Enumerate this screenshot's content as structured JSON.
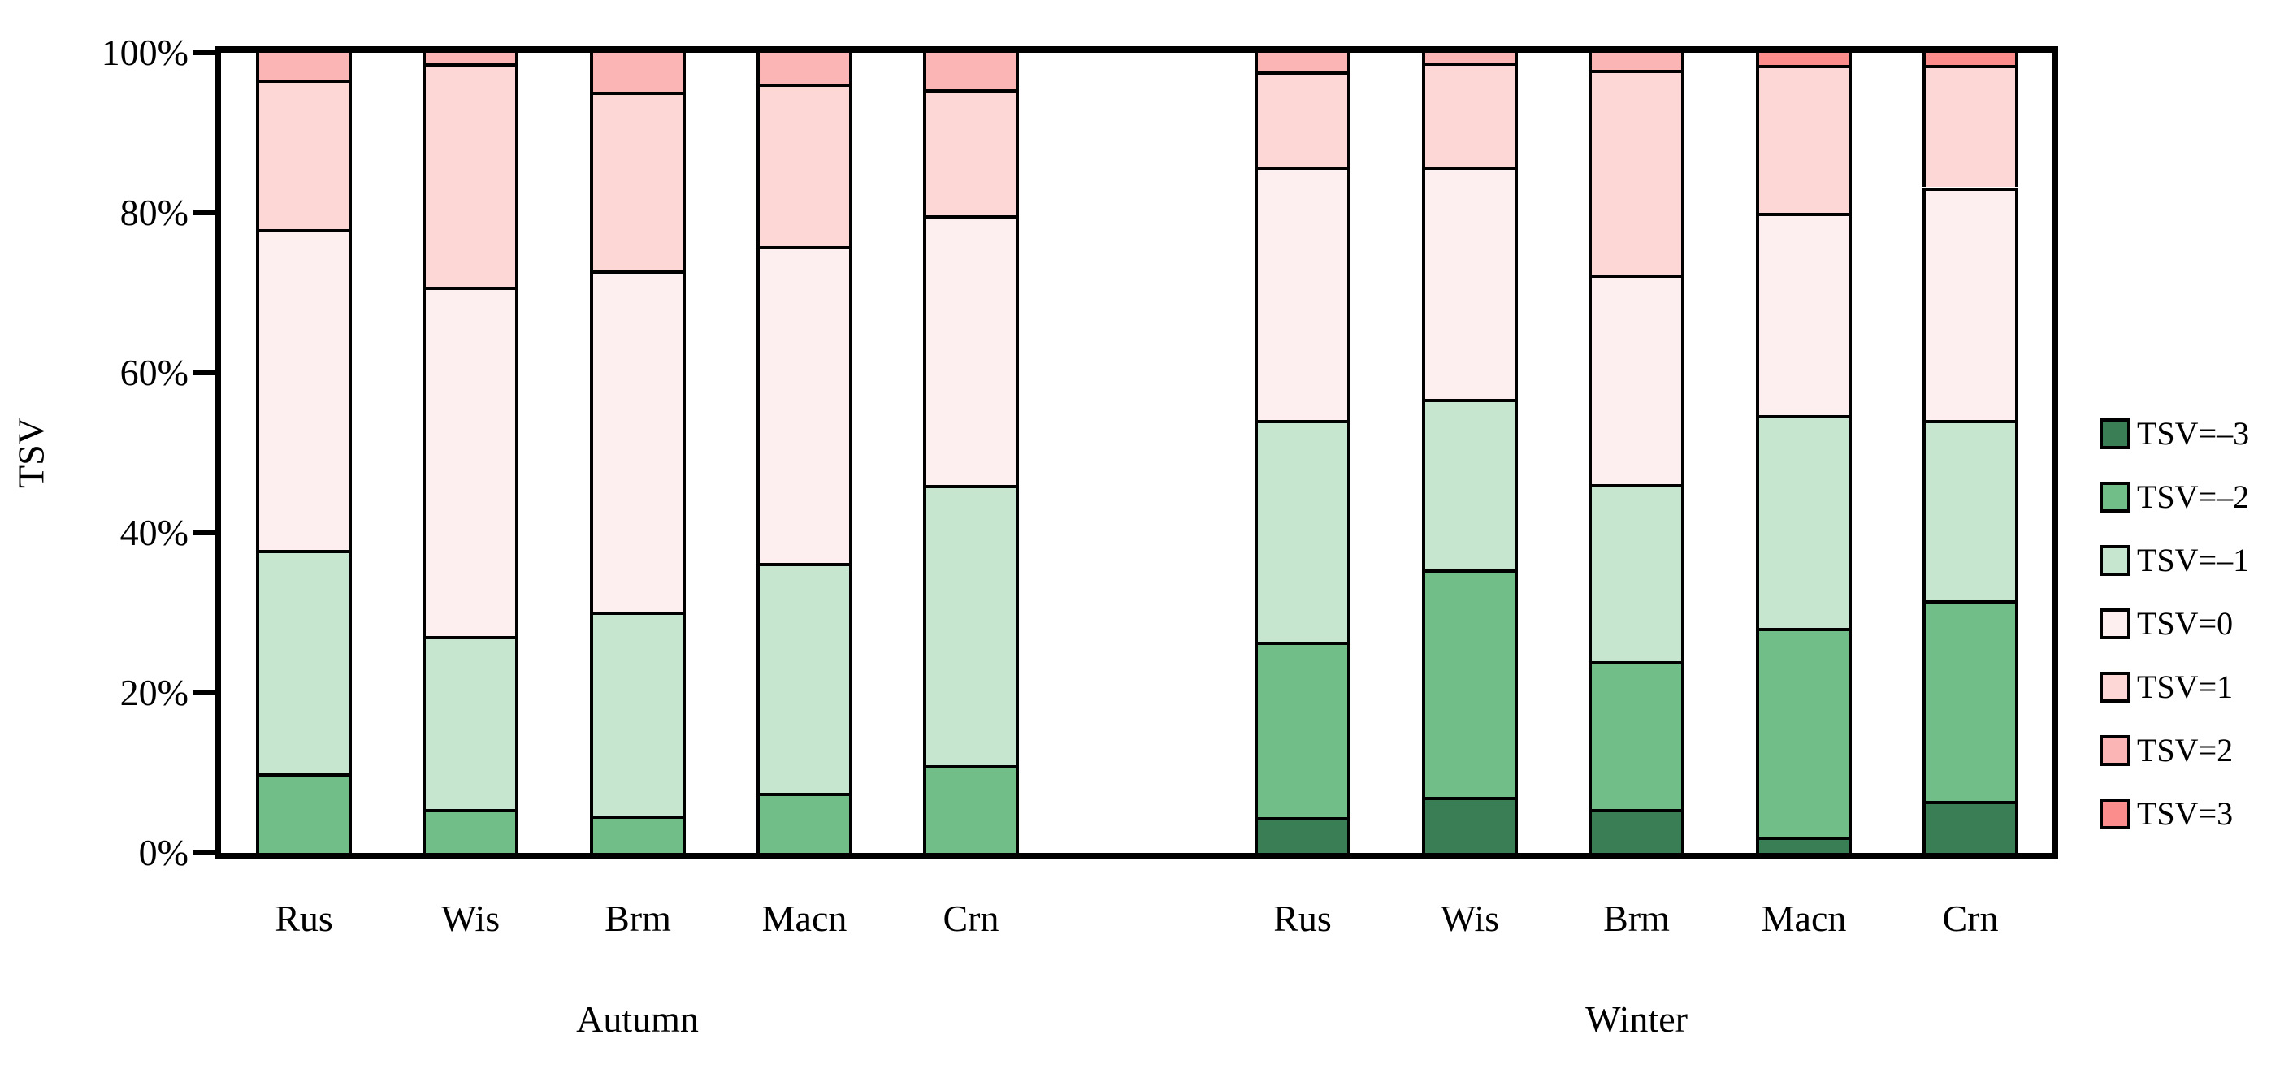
{
  "chart_data": {
    "type": "bar",
    "stacked": true,
    "percent_stacked": true,
    "title": "",
    "ylabel": "TSV",
    "xlabel": "",
    "ylim": [
      0,
      100
    ],
    "grid": false,
    "legend_position": "right",
    "y_tick_labels_top_to_bottom": [
      "100%",
      "80%",
      "60%",
      "40%",
      "20%",
      "0%"
    ],
    "group_labels": [
      "Autumn",
      "Winter"
    ],
    "categories": [
      "Rus",
      "Wis",
      "Brm",
      "Macn",
      "Crn",
      "Rus",
      "Wis",
      "Brm",
      "Macn",
      "Crn"
    ],
    "series": [
      {
        "name": "TSV=–3",
        "color": "#3A7E55",
        "values": [
          0,
          0,
          0,
          0,
          0,
          4.5,
          7,
          5.5,
          2,
          6.5
        ]
      },
      {
        "name": "TSV=–2",
        "color": "#72BE88",
        "values": [
          10,
          5.5,
          4.7,
          7.5,
          11,
          21.9,
          28.4,
          18.5,
          26.1,
          25.1
        ]
      },
      {
        "name": "TSV=–1",
        "color": "#C7E6D0",
        "values": [
          27.9,
          21.6,
          25.5,
          28.7,
          35,
          27.7,
          21.4,
          22.1,
          26.6,
          22.5
        ]
      },
      {
        "name": "TSV=0",
        "color": "#FDEFEF",
        "values": [
          40.1,
          43.7,
          42.6,
          39.6,
          33.7,
          31.7,
          29,
          26.2,
          25.3,
          29.1
        ]
      },
      {
        "name": "TSV=1",
        "color": "#FDD6D6",
        "values": [
          18.7,
          27.9,
          22.3,
          20.3,
          15.7,
          11.9,
          13,
          25.6,
          18.5,
          15.3
        ]
      },
      {
        "name": "TSV=2",
        "color": "#FCB5B5",
        "values": [
          3.3,
          1.3,
          4.9,
          3.9,
          4.6,
          2.3,
          1.2,
          2.1,
          0,
          0
        ]
      },
      {
        "name": "TSV=3",
        "color": "#FC8D8D",
        "values": [
          0,
          0,
          0,
          0,
          0,
          0,
          0,
          0,
          1.5,
          1.5
        ]
      }
    ],
    "axis_color": "#000000",
    "bar_border_color": "#000000"
  }
}
